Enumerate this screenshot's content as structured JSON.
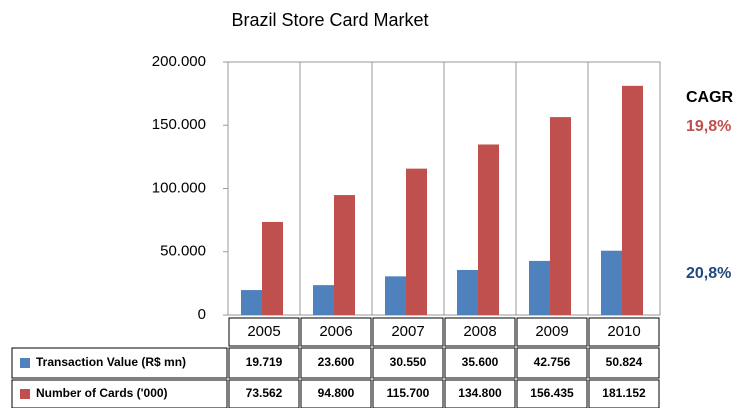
{
  "chart_data": {
    "type": "bar",
    "title": "Brazil Store Card Market",
    "categories": [
      "2005",
      "2006",
      "2007",
      "2008",
      "2009",
      "2010"
    ],
    "series": [
      {
        "name": "Transaction Value (R$ mn)",
        "color": "#4f81bd",
        "values": [
          19719,
          23600,
          30550,
          35600,
          42756,
          50824
        ],
        "value_labels": [
          "19.719",
          "23.600",
          "30.550",
          "35.600",
          "42.756",
          "50.824"
        ]
      },
      {
        "name": "Number of Cards ('000)",
        "color": "#c0504d",
        "values": [
          73562,
          94800,
          115700,
          134800,
          156435,
          181152
        ],
        "value_labels": [
          "73.562",
          "94.800",
          "115.700",
          "134.800",
          "156.435",
          "181.152"
        ]
      }
    ],
    "ylim": [
      0,
      200000
    ],
    "yticks": [
      0,
      {
        "value": 50000,
        "label": "50.000"
      },
      {
        "value": 100000,
        "label": "100.000"
      },
      {
        "value": 150000,
        "label": "150.000"
      },
      {
        "value": 200000,
        "label": "200.000"
      }
    ],
    "annotations": [
      {
        "text": "CAGR",
        "color": "#000000"
      },
      {
        "text": "19,8%",
        "color": "#c0504d"
      },
      {
        "text": "20,8%",
        "color": "#1f497d"
      }
    ]
  }
}
